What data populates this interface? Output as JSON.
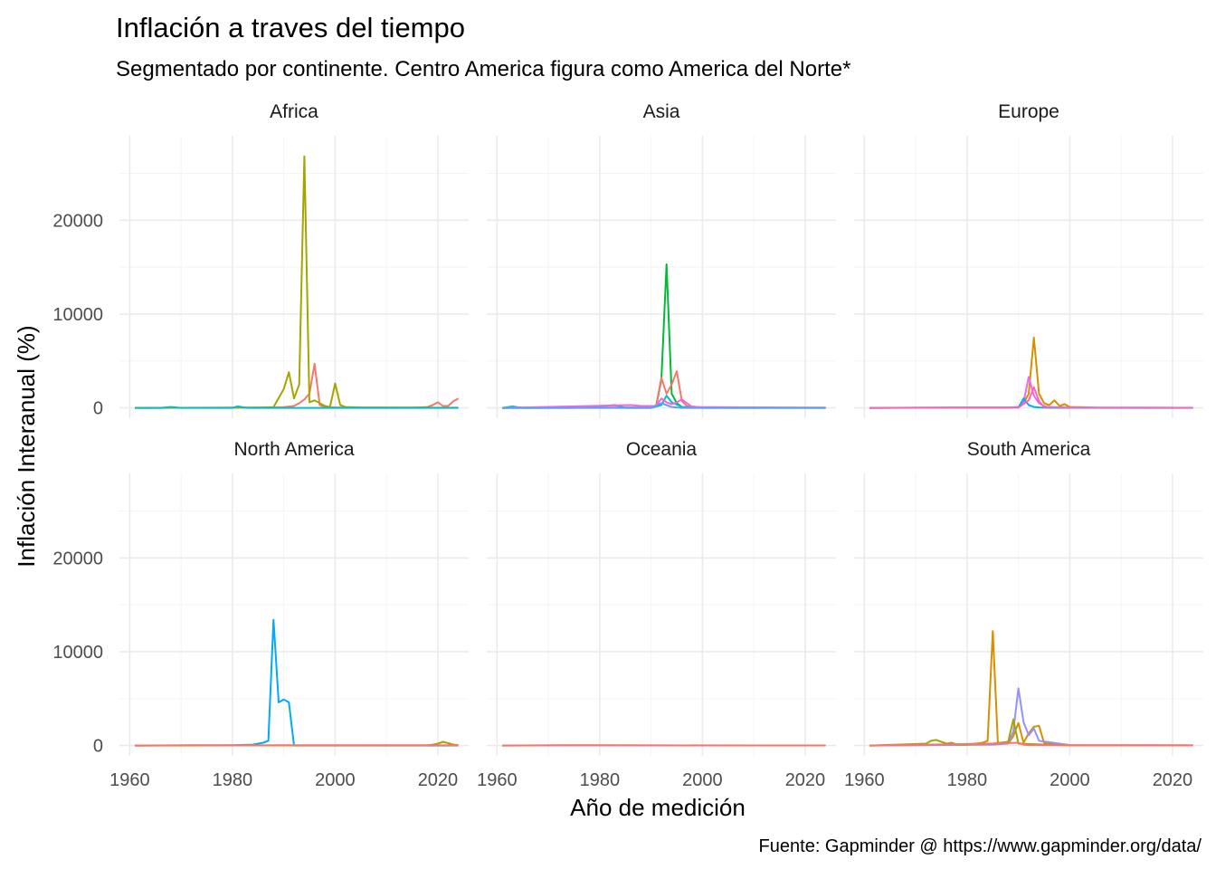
{
  "chart_data": {
    "type": "line",
    "title": "Inflación a traves del tiempo",
    "subtitle": "Segmentado por continente. Centro America figura como America del Norte*",
    "xlabel": "Año de medición",
    "ylabel": "Inflación Interanual (%)",
    "caption": "Fuente: Gapminder @ https://www.gapminder.org/data/",
    "xlim": [
      1958,
      2026
    ],
    "ylim": [
      -1100,
      29000
    ],
    "x_ticks": [
      1960,
      1980,
      2000,
      2020
    ],
    "x_tick_labels": [
      "1960",
      "1980",
      "2000",
      "2020"
    ],
    "y_ticks": [
      0,
      10000,
      20000
    ],
    "y_tick_labels": [
      "0",
      "10000",
      "20000"
    ],
    "grid": true,
    "legend": "none",
    "panels": [
      {
        "name": "Africa",
        "series": [
          {
            "color": "#F8766D",
            "x": [
              1961,
              1970,
              1980,
              1985,
              1988,
              1990,
              1992,
              1993,
              1994,
              1995,
              1996,
              1997,
              1998,
              2000,
              2005,
              2010,
              2015,
              2018,
              2019,
              2020,
              2021,
              2022,
              2023,
              2024
            ],
            "y": [
              0,
              10,
              20,
              40,
              60,
              80,
              200,
              500,
              900,
              1500,
              4700,
              300,
              100,
              60,
              40,
              30,
              20,
              100,
              300,
              600,
              200,
              200,
              700,
              1000
            ]
          },
          {
            "color": "#A3A500",
            "x": [
              1961,
              1980,
              1985,
              1988,
              1990,
              1991,
              1992,
              1993,
              1994,
              1995,
              1996,
              1997,
              1998,
              1999,
              2000,
              2001,
              2002,
              2005,
              2010,
              2015,
              2020,
              2024
            ],
            "y": [
              0,
              20,
              40,
              80,
              2000,
              3800,
              1000,
              2500,
              26800,
              600,
              800,
              500,
              200,
              100,
              2600,
              300,
              100,
              50,
              40,
              30,
              20,
              20
            ]
          },
          {
            "color": "#00BFC4",
            "x": [
              1961,
              1966,
              1968,
              1970,
              1980,
              1981,
              1983,
              1990,
              2000,
              2024
            ],
            "y": [
              0,
              0,
              100,
              0,
              0,
              150,
              0,
              0,
              0,
              0
            ]
          }
        ]
      },
      {
        "name": "Asia",
        "series": [
          {
            "color": "#00BA38",
            "x": [
              1961,
              1980,
              1988,
              1990,
              1991,
              1992,
              1993,
              1994,
              1995,
              1996,
              2000,
              2024
            ],
            "y": [
              0,
              20,
              30,
              50,
              200,
              3000,
              15300,
              1500,
              500,
              100,
              30,
              20
            ]
          },
          {
            "color": "#F8766D",
            "x": [
              1961,
              1985,
              1990,
              1991,
              1992,
              1993,
              1994,
              1995,
              1996,
              1997,
              2000,
              2024
            ],
            "y": [
              0,
              30,
              50,
              300,
              3200,
              1500,
              2500,
              3900,
              700,
              200,
              50,
              20
            ]
          },
          {
            "color": "#00BFC4",
            "x": [
              1961,
              1963,
              1965,
              1975,
              1983,
              1985,
              1990,
              1992,
              1993,
              1994,
              1996,
              2000,
              2024
            ],
            "y": [
              0,
              150,
              0,
              0,
              300,
              0,
              0,
              300,
              1300,
              600,
              100,
              0,
              0
            ]
          },
          {
            "color": "#F564E3",
            "x": [
              1961,
              1986,
              1988,
              1991,
              1992,
              1993,
              1994,
              1995,
              1996,
              1998,
              2024
            ],
            "y": [
              0,
              300,
              200,
              200,
              1000,
              600,
              400,
              600,
              900,
              100,
              0
            ]
          },
          {
            "color": "#619CFF",
            "x": [
              1961,
              1990,
              1992,
              1993,
              1994,
              1996,
              2024
            ],
            "y": [
              0,
              0,
              500,
              300,
              100,
              0,
              0
            ]
          }
        ]
      },
      {
        "name": "Europe",
        "series": [
          {
            "color": "#D89000",
            "x": [
              1961,
              1988,
              1990,
              1991,
              1992,
              1993,
              1994,
              1995,
              1996,
              1997,
              1998,
              1999,
              2000,
              2005,
              2024
            ],
            "y": [
              0,
              20,
              100,
              500,
              1500,
              7500,
              1500,
              500,
              300,
              800,
              200,
              400,
              100,
              30,
              10
            ]
          },
          {
            "color": "#E76BF3",
            "x": [
              1961,
              1990,
              1991,
              1992,
              1993,
              1994,
              1995,
              1996,
              2000,
              2024
            ],
            "y": [
              0,
              50,
              600,
              3300,
              1300,
              500,
              200,
              50,
              20,
              10
            ]
          },
          {
            "color": "#00B0F6",
            "x": [
              1961,
              1990,
              1991,
              1992,
              1993,
              1994,
              1996,
              2024
            ],
            "y": [
              0,
              50,
              1000,
              300,
              100,
              50,
              10,
              0
            ]
          },
          {
            "color": "#FF62BC",
            "x": [
              1961,
              1980,
              1990,
              1992,
              1993,
              1994,
              1995,
              2000,
              2024
            ],
            "y": [
              0,
              20,
              30,
              800,
              2200,
              700,
              100,
              30,
              10
            ]
          }
        ]
      },
      {
        "name": "North America",
        "series": [
          {
            "color": "#00A9FF",
            "x": [
              1961,
              1980,
              1984,
              1986,
              1987,
              1988,
              1989,
              1990,
              1991,
              1992,
              2000,
              2024
            ],
            "y": [
              0,
              30,
              100,
              300,
              500,
              13400,
              4600,
              4900,
              4600,
              0,
              0,
              0
            ]
          },
          {
            "color": "#A3A500",
            "x": [
              1961,
              2018,
              2019,
              2020,
              2021,
              2022,
              2023,
              2024
            ],
            "y": [
              0,
              20,
              100,
              200,
              400,
              250,
              100,
              50
            ]
          },
          {
            "color": "#F8766D",
            "x": [
              1961,
              1972,
              1980,
              1990,
              2000,
              2020,
              2024
            ],
            "y": [
              0,
              40,
              20,
              30,
              30,
              30,
              20
            ]
          }
        ]
      },
      {
        "name": "Oceania",
        "series": [
          {
            "color": "#619CFF",
            "x": [
              1961,
              1970,
              1980,
              2000,
              2024
            ],
            "y": [
              0,
              20,
              15,
              10,
              5
            ]
          },
          {
            "color": "#F8766D",
            "x": [
              1961,
              1975,
              1990,
              2010,
              2024
            ],
            "y": [
              0,
              30,
              20,
              10,
              10
            ]
          }
        ]
      },
      {
        "name": "South America",
        "series": [
          {
            "color": "#D89000",
            "x": [
              1961,
              1980,
              1983,
              1984,
              1985,
              1986,
              1987,
              1988,
              1989,
              1990,
              1991,
              1992,
              1993,
              1994,
              1995,
              2000,
              2024
            ],
            "y": [
              0,
              100,
              300,
              500,
              12200,
              300,
              200,
              200,
              1000,
              2400,
              300,
              1300,
              2000,
              2100,
              300,
              50,
              20
            ]
          },
          {
            "color": "#9590FF",
            "x": [
              1961,
              1985,
              1988,
              1989,
              1990,
              1991,
              1992,
              1993,
              1994,
              2000,
              2024
            ],
            "y": [
              0,
              100,
              200,
              1500,
              6100,
              2500,
              1100,
              1800,
              500,
              50,
              20
            ]
          },
          {
            "color": "#A3A500",
            "x": [
              1961,
              1972,
              1973,
              1974,
              1975,
              1976,
              1977,
              1978,
              1980,
              1985,
              1988,
              1989,
              1990,
              2000,
              2024
            ],
            "y": [
              0,
              200,
              500,
              600,
              400,
              200,
              300,
              100,
              100,
              200,
              400,
              2800,
              200,
              20,
              10
            ]
          },
          {
            "color": "#F8766D",
            "x": [
              1961,
              1985,
              1990,
              1991,
              1992,
              2000,
              2024
            ],
            "y": [
              0,
              200,
              300,
              100,
              50,
              20,
              10
            ]
          }
        ]
      }
    ]
  }
}
